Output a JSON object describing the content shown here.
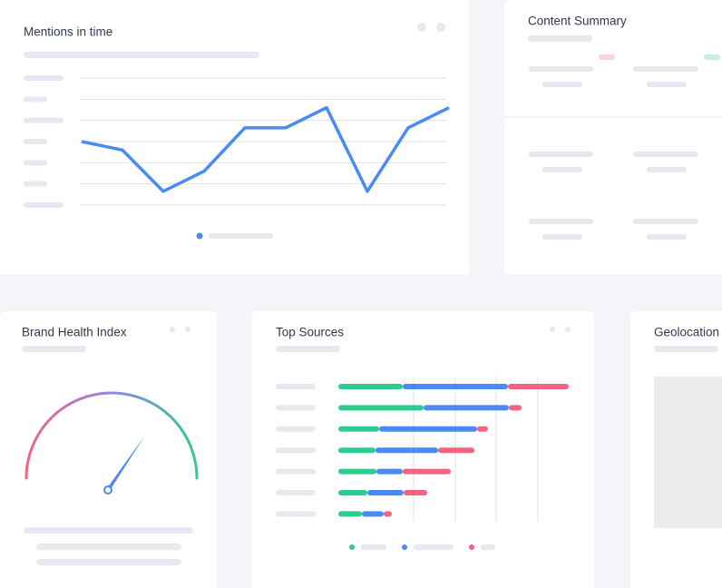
{
  "mentions": {
    "title": "Mentions in time",
    "chart": {
      "type": "line",
      "categories": [
        null,
        null,
        null,
        null,
        null,
        null,
        null,
        null,
        null,
        null
      ],
      "values": [
        3.0,
        2.6,
        0.65,
        1.6,
        3.65,
        3.65,
        4.6,
        0.65,
        3.65,
        4.6
      ],
      "color": "#4a8af4",
      "ylim": [
        0,
        6
      ],
      "yticks": [
        0,
        1,
        2,
        3,
        4,
        5,
        6
      ],
      "grid": true
    }
  },
  "content_summary": {
    "title": "Content Summary"
  },
  "brand_health": {
    "title": "Brand Health Index",
    "chart": {
      "type": "gauge",
      "value": 69,
      "lim": [
        0,
        100
      ]
    }
  },
  "top_sources": {
    "title": "Top Sources",
    "chart": {
      "type": "bar",
      "orientation": "horizontal",
      "stacked": true,
      "categories": [
        null,
        null,
        null,
        null,
        null,
        null,
        null
      ],
      "series": [
        {
          "color": "#2ecc8e",
          "values": [
            7.1,
            9.4,
            4.5,
            4.1,
            4.2,
            3.2,
            2.6
          ]
        },
        {
          "color": "#4a8af4",
          "values": [
            11.6,
            9.4,
            10.8,
            6.9,
            2.9,
            4.0,
            2.4
          ]
        },
        {
          "color": "#f4637f",
          "values": [
            6.7,
            1.4,
            1.2,
            4.0,
            5.3,
            2.6,
            0.9
          ]
        }
      ],
      "xlim": [
        0,
        28
      ],
      "xticks": [
        8.3,
        12.9,
        17.4,
        22
      ],
      "grid": true
    }
  },
  "geolocation": {
    "title": "Geolocation"
  }
}
